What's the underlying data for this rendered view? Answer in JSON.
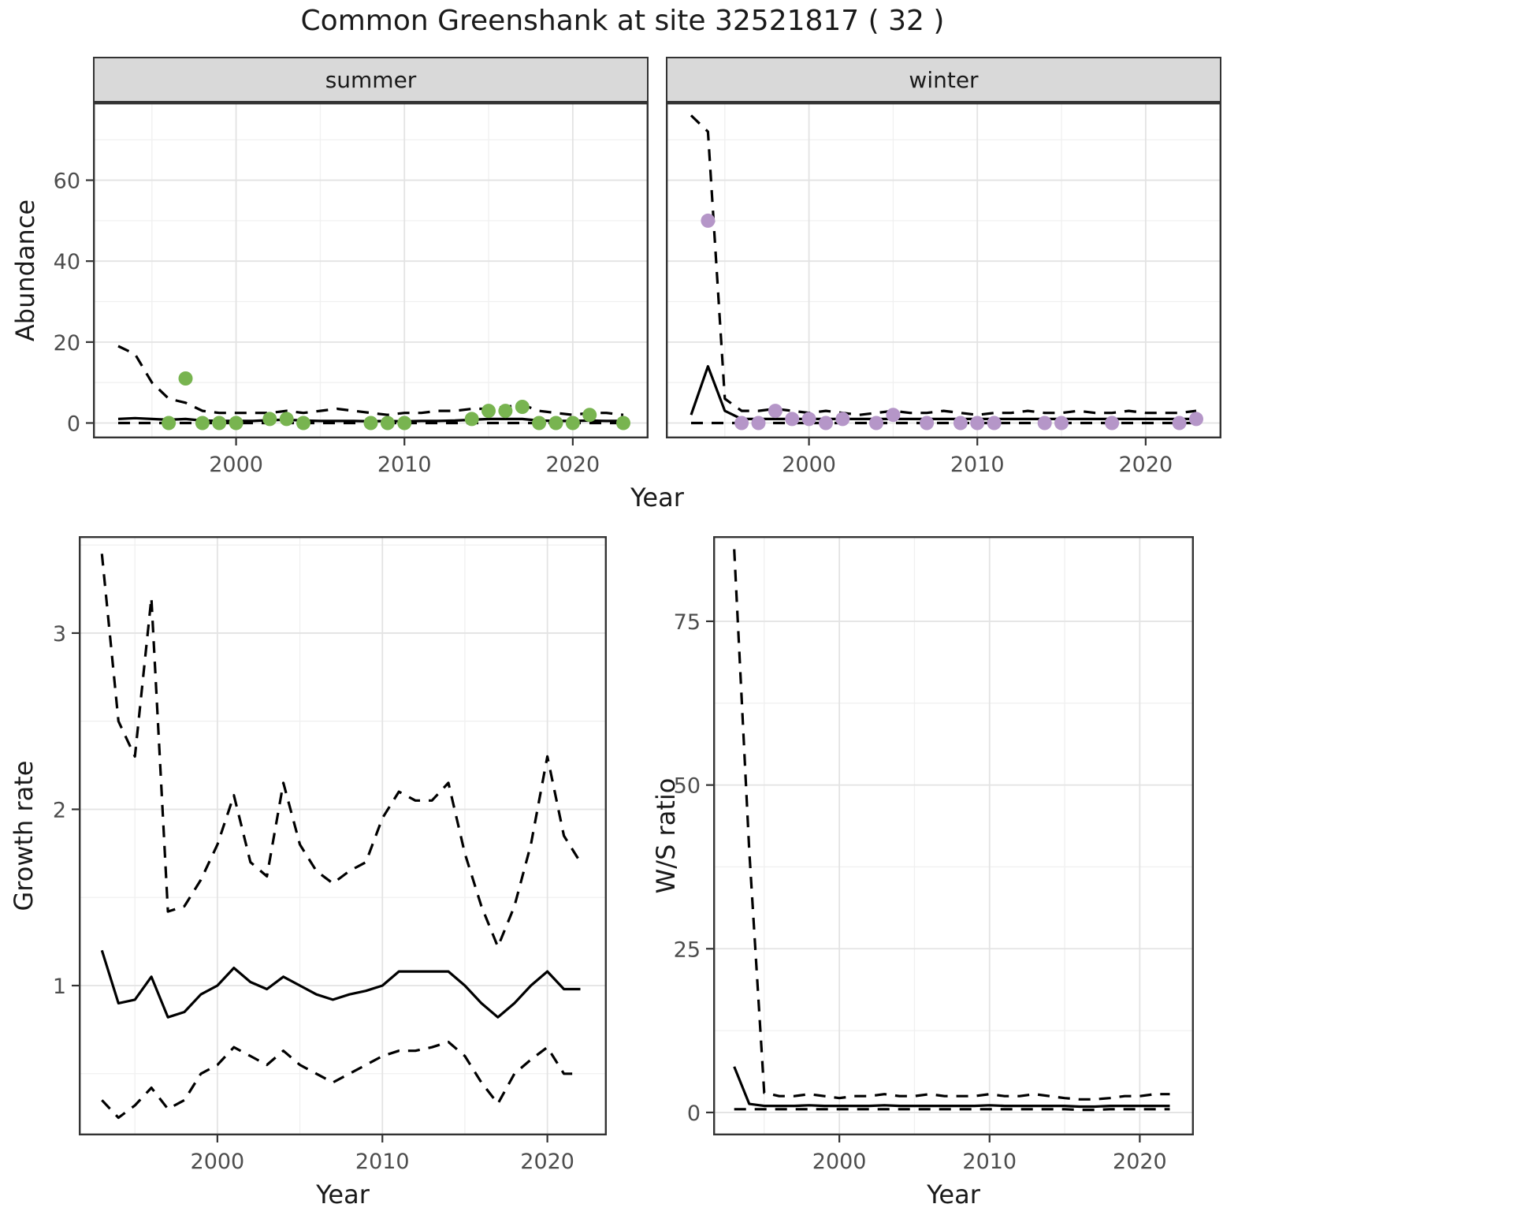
{
  "title": "Common Greenshank at site 32521817 ( 32 )",
  "axis_labels": {
    "abundance": "Abundance",
    "year": "Year",
    "growth_rate": "Growth rate",
    "ws_ratio": "W/S ratio"
  },
  "colors": {
    "summer_points": "#78b450",
    "winter_points": "#b596c8",
    "line": "#000000",
    "panel_border": "#333333",
    "strip_bg": "#d9d9d9",
    "grid_major": "#e3e3e3",
    "grid_minor": "#f0f0f0",
    "tick_label": "#4d4d4d"
  },
  "chart_data": [
    {
      "id": "abundance-summer",
      "type": "line",
      "facet_label": "summer",
      "xlabel": "Year",
      "ylabel": "Abundance",
      "xlim": [
        1991.5,
        2024.5
      ],
      "ylim": [
        -3.8,
        79.2
      ],
      "xticks": [
        2000,
        2010,
        2020
      ],
      "xminor": [
        1995,
        2005,
        2015
      ],
      "yticks": [
        0,
        20,
        40,
        60
      ],
      "yminor": [
        10,
        30,
        50,
        70
      ],
      "show_y_axis": true,
      "years": [
        1993,
        1994,
        1995,
        1996,
        1997,
        1998,
        1999,
        2000,
        2001,
        2002,
        2003,
        2004,
        2005,
        2006,
        2007,
        2008,
        2009,
        2010,
        2011,
        2012,
        2013,
        2014,
        2015,
        2016,
        2017,
        2018,
        2019,
        2020,
        2021,
        2022,
        2023
      ],
      "series": [
        {
          "name": "upper_ci",
          "style": "dashed",
          "values": [
            19,
            17,
            10,
            6,
            5,
            3,
            2.5,
            2.5,
            2.5,
            2.5,
            3,
            2.5,
            3,
            3.5,
            3,
            2.5,
            2,
            2.5,
            2.5,
            3,
            3,
            3.5,
            3.5,
            4,
            4.5,
            3,
            2.5,
            2,
            2.5,
            2.5,
            2
          ]
        },
        {
          "name": "median",
          "style": "solid",
          "values": [
            1,
            1.2,
            1,
            0.8,
            1,
            0.6,
            0.5,
            0.5,
            0.5,
            0.7,
            0.8,
            0.6,
            0.5,
            0.5,
            0.5,
            0.4,
            0.5,
            0.4,
            0.5,
            0.5,
            0.6,
            0.8,
            1,
            1,
            1,
            0.6,
            0.5,
            0.5,
            0.6,
            0.5,
            0.5
          ]
        },
        {
          "name": "lower_ci",
          "style": "dashed",
          "values": [
            0,
            0,
            0,
            0,
            0,
            0,
            0,
            0,
            0,
            0,
            0,
            0,
            0,
            0,
            0,
            0,
            0,
            0,
            0,
            0,
            0,
            0,
            0,
            0,
            0,
            0,
            0,
            0,
            0,
            0,
            0
          ]
        }
      ],
      "points": {
        "name": "observed_counts",
        "color_key": "summer_points",
        "years": [
          1996,
          1997,
          1998,
          1999,
          2000,
          2002,
          2003,
          2004,
          2008,
          2009,
          2010,
          2014,
          2015,
          2016,
          2017,
          2018,
          2019,
          2020,
          2021,
          2023
        ],
        "values": [
          0,
          11,
          0,
          0,
          0,
          1,
          1,
          0,
          0,
          0,
          0,
          1,
          3,
          3,
          4,
          0,
          0,
          0,
          2,
          0
        ]
      }
    },
    {
      "id": "abundance-winter",
      "type": "line",
      "facet_label": "winter",
      "xlabel": "Year",
      "ylabel": "Abundance",
      "xlim": [
        1991.5,
        2024.5
      ],
      "ylim": [
        -3.8,
        79.2
      ],
      "xticks": [
        2000,
        2010,
        2020
      ],
      "xminor": [
        1995,
        2005,
        2015
      ],
      "yticks": [
        0,
        20,
        40,
        60
      ],
      "yminor": [
        10,
        30,
        50,
        70
      ],
      "show_y_axis": false,
      "years": [
        1993,
        1994,
        1995,
        1996,
        1997,
        1998,
        1999,
        2000,
        2001,
        2002,
        2003,
        2004,
        2005,
        2006,
        2007,
        2008,
        2009,
        2010,
        2011,
        2012,
        2013,
        2014,
        2015,
        2016,
        2017,
        2018,
        2019,
        2020,
        2021,
        2022,
        2023
      ],
      "series": [
        {
          "name": "upper_ci",
          "style": "dashed",
          "values": [
            76,
            72,
            6,
            3,
            3,
            3.5,
            3,
            2.5,
            3,
            2.5,
            2,
            2.5,
            3,
            2.5,
            2.5,
            3,
            2.5,
            2,
            2.5,
            2.5,
            3,
            2.5,
            2.5,
            3,
            2.5,
            2.5,
            3,
            2.5,
            2.5,
            2.5,
            3
          ]
        },
        {
          "name": "median",
          "style": "solid",
          "values": [
            2,
            14,
            3,
            1,
            1,
            1,
            1,
            1,
            1,
            1,
            1,
            1,
            1,
            1,
            1,
            1,
            1,
            1,
            1,
            1,
            1,
            1,
            1,
            1,
            1,
            1,
            1,
            1,
            1,
            1,
            1
          ]
        },
        {
          "name": "lower_ci",
          "style": "dashed",
          "values": [
            0,
            0,
            0,
            0,
            0,
            0,
            0,
            0,
            0,
            0,
            0,
            0,
            0,
            0,
            0,
            0,
            0,
            0,
            0,
            0,
            0,
            0,
            0,
            0,
            0,
            0,
            0,
            0,
            0,
            0,
            0
          ]
        }
      ],
      "points": {
        "name": "observed_counts",
        "color_key": "winter_points",
        "years": [
          1994,
          1996,
          1997,
          1998,
          1999,
          2000,
          2001,
          2002,
          2004,
          2005,
          2007,
          2009,
          2010,
          2011,
          2014,
          2015,
          2018,
          2022,
          2023
        ],
        "values": [
          50,
          0,
          0,
          3,
          1,
          1,
          0,
          1,
          0,
          2,
          0,
          0,
          0,
          0,
          0,
          0,
          0,
          0,
          1
        ]
      }
    },
    {
      "id": "growth-rate",
      "type": "line",
      "xlabel": "Year",
      "ylabel": "Growth rate",
      "xlim": [
        1991.6,
        2023.6
      ],
      "ylim": [
        0.15,
        3.55
      ],
      "xticks": [
        2000,
        2010,
        2020
      ],
      "xminor": [
        1995,
        2005,
        2015
      ],
      "yticks": [
        1,
        2,
        3
      ],
      "yminor": [
        0.5,
        1.5,
        2.5,
        3.5
      ],
      "show_y_axis": true,
      "years": [
        1993,
        1994,
        1995,
        1996,
        1997,
        1998,
        1999,
        2000,
        2001,
        2002,
        2003,
        2004,
        2005,
        2006,
        2007,
        2008,
        2009,
        2010,
        2011,
        2012,
        2013,
        2014,
        2015,
        2016,
        2017,
        2018,
        2019,
        2020,
        2021,
        2022
      ],
      "series": [
        {
          "name": "upper_ci",
          "style": "dashed",
          "values": [
            3.45,
            2.5,
            2.3,
            3.2,
            1.42,
            1.45,
            1.6,
            1.8,
            2.08,
            1.7,
            1.62,
            2.15,
            1.8,
            1.65,
            1.58,
            1.65,
            1.7,
            1.95,
            2.1,
            2.05,
            2.05,
            2.15,
            1.75,
            1.45,
            1.22,
            1.45,
            1.8,
            2.3,
            1.85,
            1.7
          ]
        },
        {
          "name": "median",
          "style": "solid",
          "values": [
            1.2,
            0.9,
            0.92,
            1.05,
            0.82,
            0.85,
            0.95,
            1.0,
            1.1,
            1.02,
            0.98,
            1.05,
            1.0,
            0.95,
            0.92,
            0.95,
            0.97,
            1.0,
            1.08,
            1.08,
            1.08,
            1.08,
            1.0,
            0.9,
            0.82,
            0.9,
            1.0,
            1.08,
            0.98,
            0.98
          ]
        },
        {
          "name": "lower_ci",
          "style": "dashed",
          "values": [
            0.35,
            0.25,
            0.32,
            0.42,
            0.3,
            0.35,
            0.5,
            0.55,
            0.65,
            0.6,
            0.55,
            0.63,
            0.55,
            0.5,
            0.45,
            0.5,
            0.55,
            0.6,
            0.63,
            0.63,
            0.65,
            0.68,
            0.6,
            0.45,
            0.33,
            0.5,
            0.58,
            0.65,
            0.5,
            0.5
          ]
        }
      ]
    },
    {
      "id": "ws-ratio",
      "type": "line",
      "xlabel": "Year",
      "ylabel": "W/S ratio",
      "xlim": [
        1991.6,
        2023.6
      ],
      "ylim": [
        -3.5,
        88
      ],
      "xticks": [
        2000,
        2010,
        2020
      ],
      "xminor": [
        1995,
        2005,
        2015
      ],
      "yticks": [
        0,
        25,
        50,
        75
      ],
      "yminor": [
        12.5,
        37.5,
        62.5
      ],
      "show_y_axis": true,
      "years": [
        1993,
        1994,
        1995,
        1996,
        1997,
        1998,
        1999,
        2000,
        2001,
        2002,
        2003,
        2004,
        2005,
        2006,
        2007,
        2008,
        2009,
        2010,
        2011,
        2012,
        2013,
        2014,
        2015,
        2016,
        2017,
        2018,
        2019,
        2020,
        2021,
        2022
      ],
      "series": [
        {
          "name": "upper_ci",
          "style": "dashed",
          "values": [
            86,
            40,
            3,
            2.5,
            2.5,
            2.8,
            2.5,
            2.2,
            2.5,
            2.5,
            2.8,
            2.5,
            2.5,
            2.8,
            2.5,
            2.5,
            2.5,
            2.8,
            2.5,
            2.5,
            2.8,
            2.5,
            2.2,
            2,
            2,
            2.2,
            2.5,
            2.5,
            2.8,
            2.8
          ]
        },
        {
          "name": "median",
          "style": "solid",
          "values": [
            7,
            1.3,
            1,
            1,
            1,
            1.1,
            1,
            1,
            1,
            1,
            1.1,
            1,
            1,
            1,
            1,
            1,
            1,
            1.1,
            1,
            1,
            1,
            1,
            1,
            0.9,
            0.9,
            1,
            1,
            1,
            1,
            1
          ]
        },
        {
          "name": "lower_ci",
          "style": "dashed",
          "values": [
            0.5,
            0.5,
            0.5,
            0.5,
            0.5,
            0.5,
            0.5,
            0.5,
            0.5,
            0.5,
            0.5,
            0.5,
            0.5,
            0.5,
            0.5,
            0.5,
            0.5,
            0.5,
            0.5,
            0.5,
            0.5,
            0.5,
            0.5,
            0.4,
            0.4,
            0.5,
            0.5,
            0.5,
            0.5,
            0.5
          ]
        }
      ]
    }
  ]
}
